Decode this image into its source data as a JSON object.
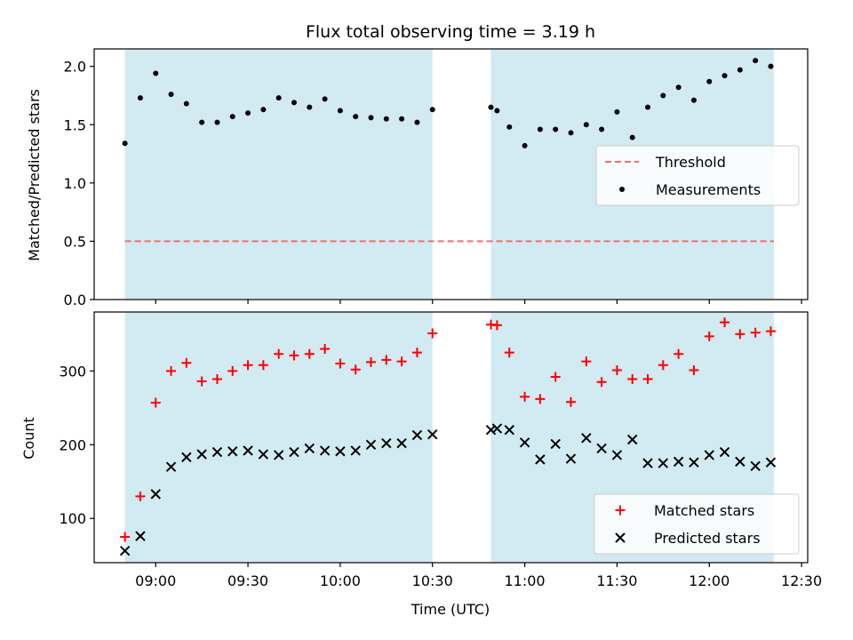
{
  "colors": {
    "band": "#add8e6",
    "threshold": "#f07070",
    "matched": "#ff0000",
    "predicted": "#000000",
    "measurement": "#000000"
  },
  "chart_data": [
    {
      "type": "scatter",
      "title": "Flux total observing time = 3.19 h",
      "ylabel": "Matched/Predicted stars",
      "xlabel": "",
      "xlim": [
        "08:40",
        "12:32"
      ],
      "ylim": [
        0,
        2.15
      ],
      "yticks": [
        0.0,
        0.5,
        1.0,
        1.5,
        2.0
      ],
      "ytick_labels": [
        "0.0",
        "0.5",
        "1.0",
        "1.5",
        "2.0"
      ],
      "xticks": [
        "09:00",
        "09:30",
        "10:00",
        "10:30",
        "11:00",
        "11:30",
        "12:00",
        "12:30"
      ],
      "show_xtick_labels": false,
      "grid": false,
      "shaded_intervals": [
        [
          "08:50",
          "10:30"
        ],
        [
          "10:49",
          "12:21"
        ]
      ],
      "threshold": 0.5,
      "legend": {
        "position": "right",
        "entries": [
          "Threshold",
          "Measurements"
        ]
      },
      "series": [
        {
          "name": "Measurements",
          "x": [
            "08:50",
            "08:55",
            "09:00",
            "09:05",
            "09:10",
            "09:15",
            "09:20",
            "09:25",
            "09:30",
            "09:35",
            "09:40",
            "09:45",
            "09:50",
            "09:55",
            "10:00",
            "10:05",
            "10:10",
            "10:15",
            "10:20",
            "10:25",
            "10:30",
            "10:49",
            "10:51",
            "10:55",
            "11:00",
            "11:05",
            "11:10",
            "11:15",
            "11:20",
            "11:25",
            "11:30",
            "11:35",
            "11:40",
            "11:45",
            "11:50",
            "11:55",
            "12:00",
            "12:05",
            "12:10",
            "12:15",
            "12:20"
          ],
          "y": [
            1.34,
            1.73,
            1.94,
            1.76,
            1.68,
            1.52,
            1.52,
            1.57,
            1.6,
            1.63,
            1.73,
            1.69,
            1.65,
            1.72,
            1.62,
            1.57,
            1.56,
            1.55,
            1.55,
            1.52,
            1.63,
            1.65,
            1.62,
            1.48,
            1.32,
            1.46,
            1.46,
            1.43,
            1.5,
            1.46,
            1.61,
            1.39,
            1.65,
            1.75,
            1.82,
            1.71,
            1.87,
            1.92,
            1.97,
            2.05,
            2.0
          ]
        }
      ]
    },
    {
      "type": "scatter",
      "title": "",
      "ylabel": "Count",
      "xlabel": "Time (UTC)",
      "xlim": [
        "08:40",
        "12:32"
      ],
      "ylim": [
        40,
        380
      ],
      "yticks": [
        100,
        200,
        300
      ],
      "ytick_labels": [
        "100",
        "200",
        "300"
      ],
      "xticks": [
        "09:00",
        "09:30",
        "10:00",
        "10:30",
        "11:00",
        "11:30",
        "12:00",
        "12:30"
      ],
      "show_xtick_labels": true,
      "grid": false,
      "shaded_intervals": [
        [
          "08:50",
          "10:30"
        ],
        [
          "10:49",
          "12:21"
        ]
      ],
      "legend": {
        "position": "bottom-right",
        "entries": [
          "Matched stars",
          "Predicted stars"
        ]
      },
      "series": [
        {
          "name": "Matched stars",
          "marker": "plus",
          "x": [
            "08:50",
            "08:55",
            "09:00",
            "09:05",
            "09:10",
            "09:15",
            "09:20",
            "09:25",
            "09:30",
            "09:35",
            "09:40",
            "09:45",
            "09:50",
            "09:55",
            "10:00",
            "10:05",
            "10:10",
            "10:15",
            "10:20",
            "10:25",
            "10:30",
            "10:49",
            "10:51",
            "10:55",
            "11:00",
            "11:05",
            "11:10",
            "11:15",
            "11:20",
            "11:25",
            "11:30",
            "11:35",
            "11:40",
            "11:45",
            "11:50",
            "11:55",
            "12:00",
            "12:05",
            "12:10",
            "12:15",
            "12:20"
          ],
          "y": [
            75,
            130,
            257,
            300,
            311,
            286,
            289,
            300,
            308,
            308,
            323,
            321,
            323,
            330,
            310,
            302,
            312,
            315,
            313,
            325,
            351,
            363,
            362,
            325,
            265,
            262,
            292,
            258,
            313,
            285,
            301,
            289,
            289,
            308,
            323,
            301,
            347,
            366,
            350,
            352,
            354
          ]
        },
        {
          "name": "Predicted stars",
          "marker": "x",
          "x": [
            "08:50",
            "08:55",
            "09:00",
            "09:05",
            "09:10",
            "09:15",
            "09:20",
            "09:25",
            "09:30",
            "09:35",
            "09:40",
            "09:45",
            "09:50",
            "09:55",
            "10:00",
            "10:05",
            "10:10",
            "10:15",
            "10:20",
            "10:25",
            "10:30",
            "10:49",
            "10:51",
            "10:55",
            "11:00",
            "11:05",
            "11:10",
            "11:15",
            "11:20",
            "11:25",
            "11:30",
            "11:35",
            "11:40",
            "11:45",
            "11:50",
            "11:55",
            "12:00",
            "12:05",
            "12:10",
            "12:15",
            "12:20"
          ],
          "y": [
            56,
            76,
            133,
            170,
            183,
            187,
            190,
            191,
            192,
            187,
            186,
            190,
            195,
            192,
            191,
            192,
            200,
            202,
            202,
            213,
            214,
            220,
            222,
            220,
            203,
            180,
            201,
            181,
            209,
            195,
            186,
            207,
            175,
            175,
            177,
            176,
            186,
            190,
            177,
            171,
            176
          ]
        }
      ]
    }
  ]
}
